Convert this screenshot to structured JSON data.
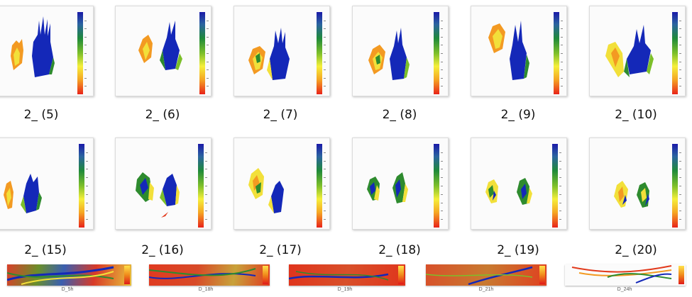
{
  "thumbnails": [
    {
      "label": "2_ (5)"
    },
    {
      "label": "2_ (6)"
    },
    {
      "label": "2_ (7)"
    },
    {
      "label": "2_ (8)"
    },
    {
      "label": "2_ (9)"
    },
    {
      "label": "2_ (10)"
    },
    {
      "label": "2_ (15)"
    },
    {
      "label": "2_ (16)"
    },
    {
      "label": "2_ (17)"
    },
    {
      "label": "2_ (18)"
    },
    {
      "label": "2_ (19)"
    },
    {
      "label": "2_ (20)"
    }
  ],
  "strips": [
    {
      "label": "D_5h"
    },
    {
      "label": "D_18h"
    },
    {
      "label": "D_19h"
    },
    {
      "label": "D_21h"
    },
    {
      "label": "D_24h"
    }
  ],
  "colors": {
    "blue": "#1428b8",
    "green": "#2e8b2e",
    "yellow": "#f2e03a",
    "orange": "#f39a22",
    "red": "#e23a1c"
  }
}
